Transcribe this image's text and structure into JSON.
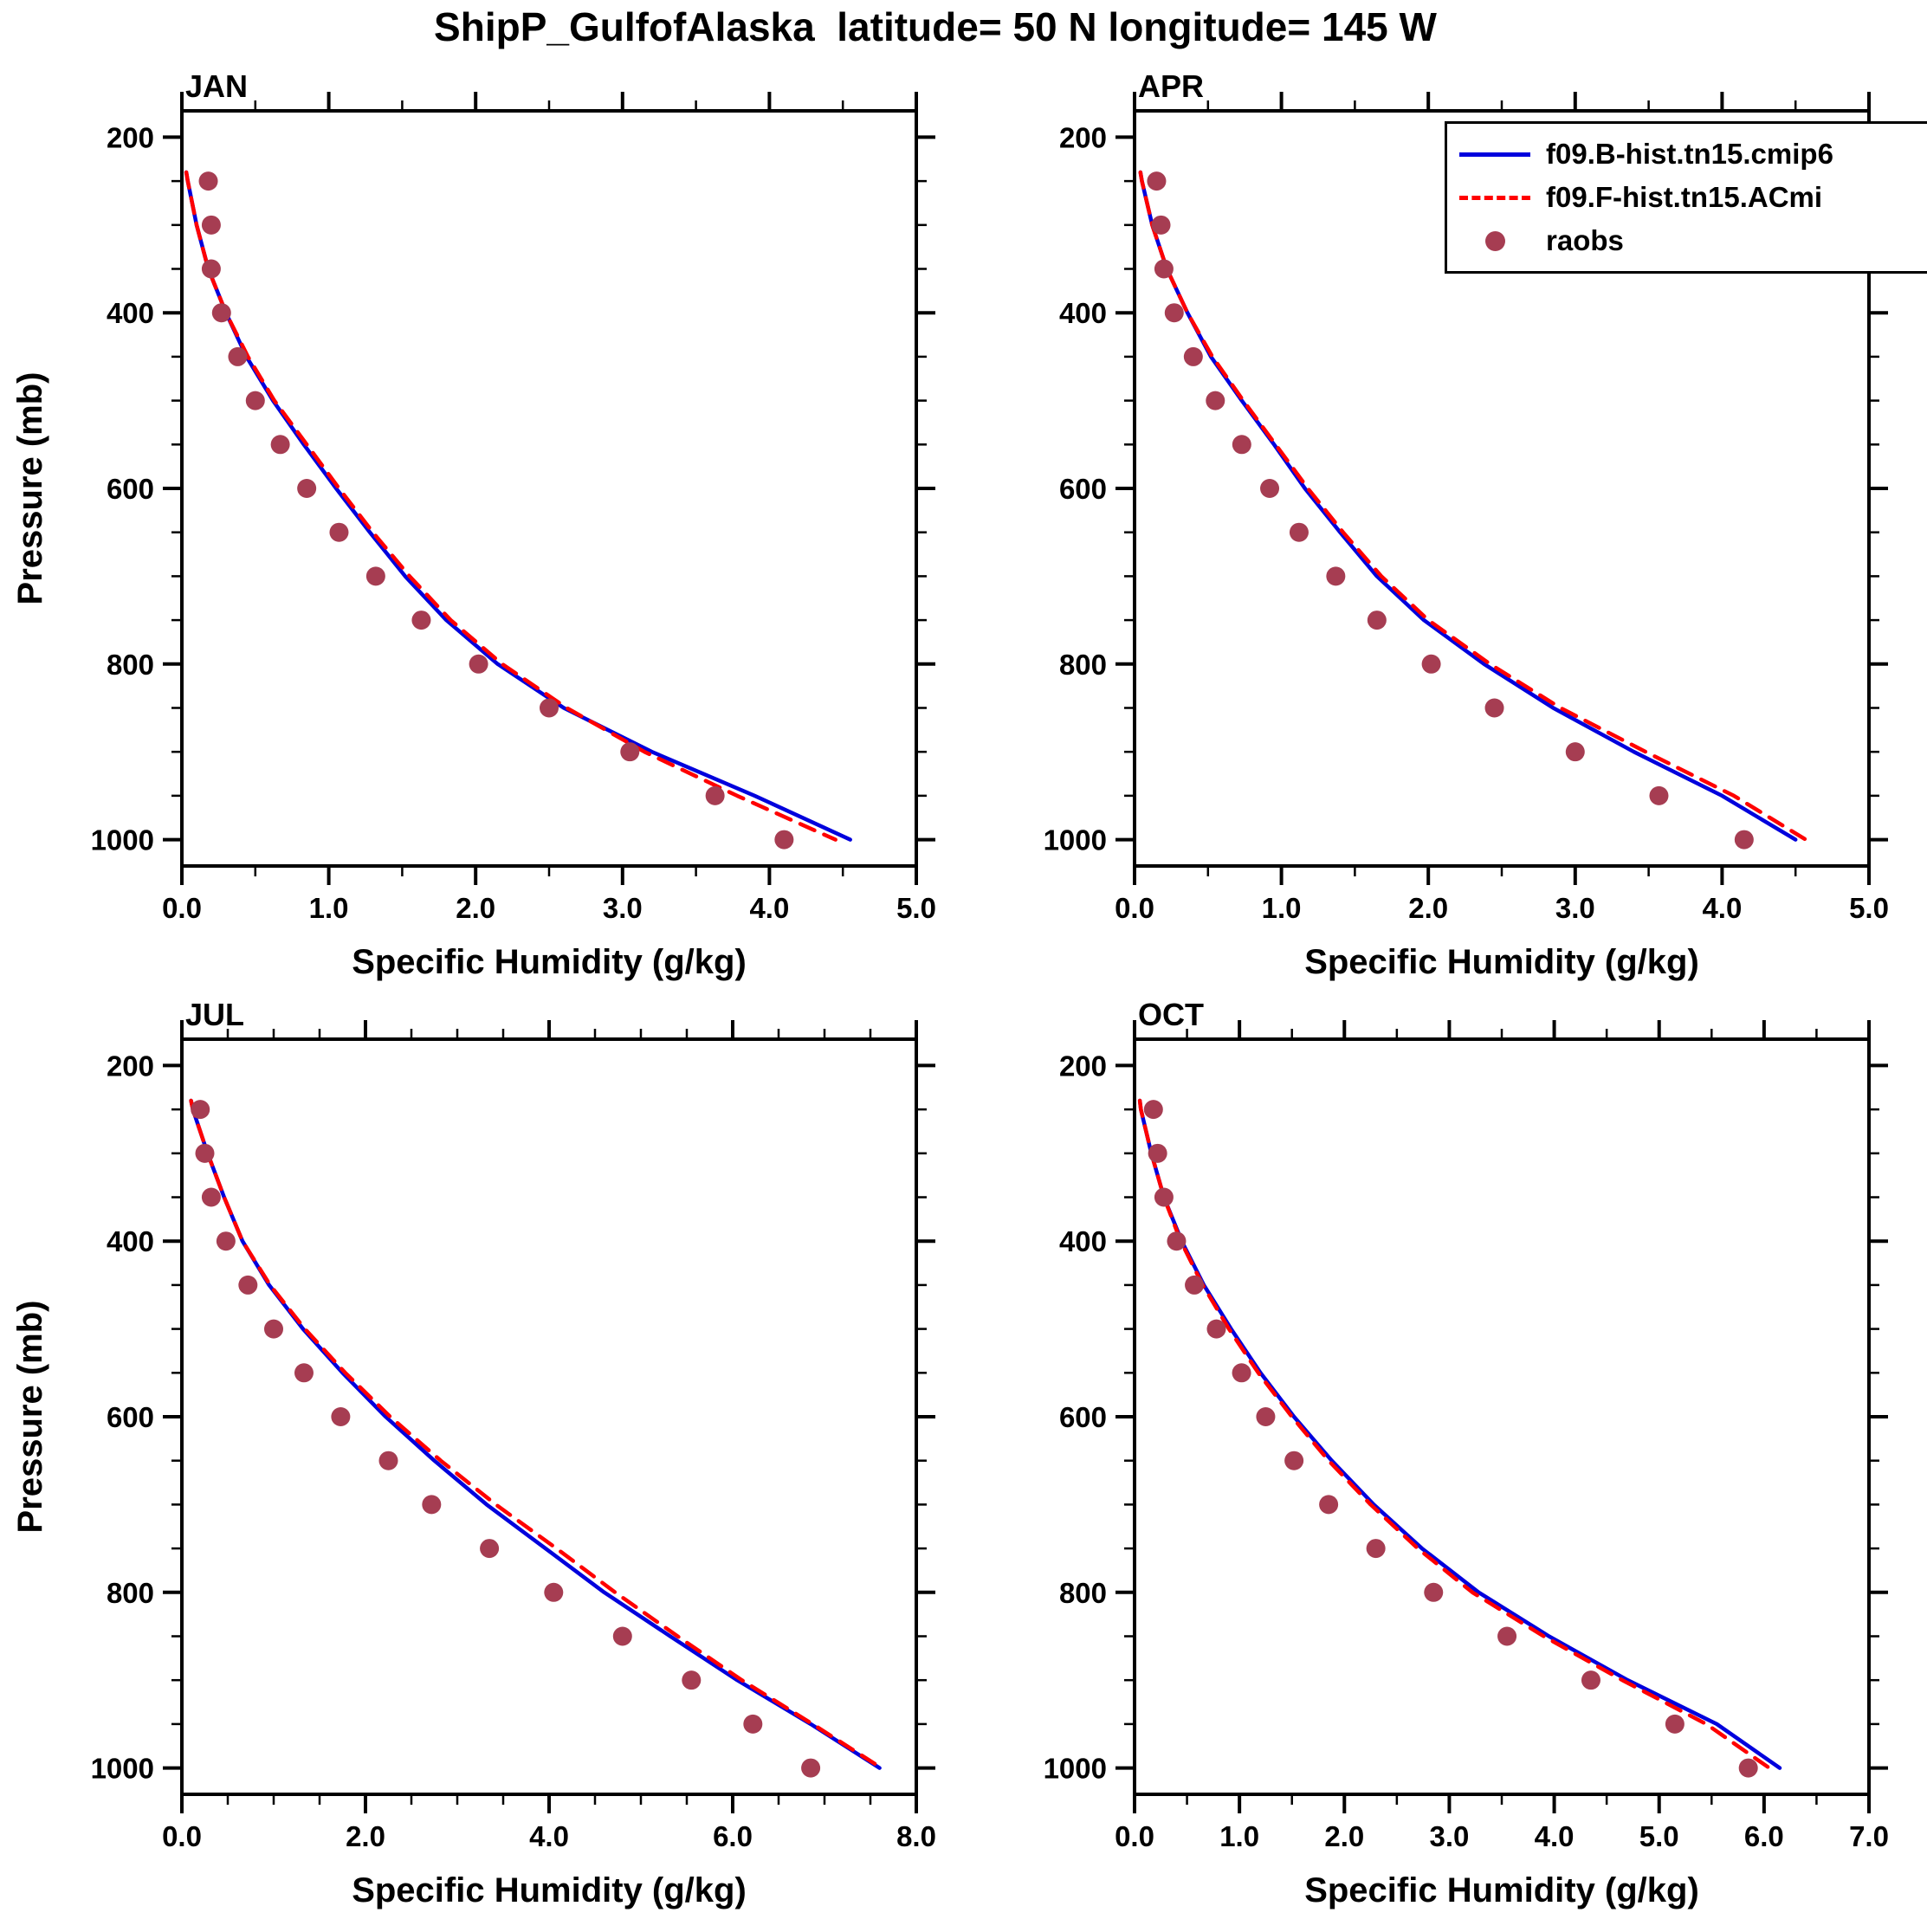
{
  "header": {
    "title": "ShipP_GulfofAlaska  latitude= 50 N longitude= 145 W"
  },
  "chart_data": {
    "type": "line",
    "title": "ShipP_GulfofAlaska  latitude= 50 N longitude= 145 W",
    "xlabel": "Specific Humidity (g/kg)",
    "ylabel": "Pressure (mb)",
    "grid": false,
    "legend_position": "top-right-overflow",
    "y_axis": {
      "tick_labels": [
        200,
        400,
        600,
        800,
        1000
      ],
      "min": 200,
      "max": 1000,
      "major_step": 200,
      "minor_step": 50,
      "domain_min": 170,
      "domain_max": 1030,
      "inverted": true
    },
    "pressures_model": [
      240,
      250,
      300,
      350,
      400,
      450,
      500,
      550,
      600,
      650,
      700,
      750,
      800,
      850,
      900,
      950,
      1000
    ],
    "pressures_obs": [
      250,
      300,
      350,
      400,
      450,
      500,
      550,
      600,
      650,
      700,
      750,
      800,
      850,
      900,
      950,
      1000
    ],
    "panels": [
      {
        "label": "JAN",
        "x_max": 5.0,
        "x_major_step": 1.0,
        "x_minor_step": 0.5,
        "x_tick_labels": [
          "0.0",
          "1.0",
          "2.0",
          "3.0",
          "4.0",
          "5.0"
        ],
        "series": {
          "model_b": [
            0.03,
            0.04,
            0.1,
            0.18,
            0.3,
            0.44,
            0.62,
            0.83,
            1.05,
            1.28,
            1.52,
            1.8,
            2.15,
            2.6,
            3.2,
            3.9,
            4.55
          ],
          "model_f": [
            0.03,
            0.04,
            0.1,
            0.18,
            0.3,
            0.45,
            0.63,
            0.85,
            1.07,
            1.3,
            1.55,
            1.83,
            2.18,
            2.62,
            3.15,
            3.78,
            4.45
          ],
          "raobs": [
            0.18,
            0.2,
            0.2,
            0.27,
            0.38,
            0.5,
            0.67,
            0.85,
            1.07,
            1.32,
            1.63,
            2.02,
            2.5,
            3.05,
            3.63,
            4.1
          ]
        }
      },
      {
        "label": "APR",
        "x_max": 5.0,
        "x_major_step": 1.0,
        "x_minor_step": 0.5,
        "x_tick_labels": [
          "0.0",
          "1.0",
          "2.0",
          "3.0",
          "4.0",
          "5.0"
        ],
        "series": {
          "model_b": [
            0.04,
            0.05,
            0.12,
            0.22,
            0.36,
            0.52,
            0.73,
            0.95,
            1.16,
            1.4,
            1.65,
            1.97,
            2.38,
            2.85,
            3.4,
            4.0,
            4.5
          ],
          "model_f": [
            0.04,
            0.05,
            0.12,
            0.22,
            0.36,
            0.53,
            0.74,
            0.96,
            1.18,
            1.42,
            1.68,
            2.0,
            2.42,
            2.9,
            3.48,
            4.08,
            4.57
          ],
          "raobs": [
            0.15,
            0.18,
            0.2,
            0.27,
            0.4,
            0.55,
            0.73,
            0.92,
            1.12,
            1.37,
            1.65,
            2.02,
            2.45,
            3.0,
            3.57,
            4.15
          ]
        }
      },
      {
        "label": "JUL",
        "x_max": 8.0,
        "x_major_step": 2.0,
        "x_minor_step": 0.5,
        "x_tick_labels": [
          "0.0",
          "2.0",
          "4.0",
          "6.0",
          "8.0"
        ],
        "series": {
          "model_b": [
            0.1,
            0.12,
            0.28,
            0.46,
            0.66,
            0.95,
            1.32,
            1.75,
            2.22,
            2.75,
            3.32,
            3.96,
            4.6,
            5.32,
            6.05,
            6.85,
            7.6
          ],
          "model_f": [
            0.1,
            0.12,
            0.28,
            0.46,
            0.66,
            0.96,
            1.34,
            1.78,
            2.27,
            2.82,
            3.42,
            4.08,
            4.72,
            5.4,
            6.1,
            6.87,
            7.62
          ],
          "raobs": [
            0.2,
            0.25,
            0.32,
            0.48,
            0.72,
            1.0,
            1.33,
            1.73,
            2.25,
            2.72,
            3.35,
            4.05,
            4.8,
            5.55,
            6.22,
            6.85
          ]
        }
      },
      {
        "label": "OCT",
        "x_max": 7.0,
        "x_major_step": 1.0,
        "x_minor_step": 0.5,
        "x_tick_labels": [
          "0.0",
          "1.0",
          "2.0",
          "3.0",
          "4.0",
          "5.0",
          "6.0",
          "7.0"
        ],
        "series": {
          "model_b": [
            0.05,
            0.06,
            0.16,
            0.28,
            0.45,
            0.66,
            0.92,
            1.2,
            1.52,
            1.88,
            2.28,
            2.74,
            3.28,
            3.95,
            4.7,
            5.55,
            6.15
          ],
          "model_f": [
            0.05,
            0.06,
            0.16,
            0.28,
            0.44,
            0.65,
            0.9,
            1.18,
            1.5,
            1.85,
            2.25,
            2.7,
            3.22,
            3.9,
            4.65,
            5.45,
            6.05
          ],
          "raobs": [
            0.18,
            0.22,
            0.28,
            0.4,
            0.57,
            0.78,
            1.02,
            1.25,
            1.52,
            1.85,
            2.3,
            2.85,
            3.55,
            4.35,
            5.15,
            5.85
          ]
        }
      }
    ],
    "legend": {
      "entries": [
        {
          "label": "f09.B-hist.tn15.cmip6",
          "style": "solid-line",
          "color": "#0000dd"
        },
        {
          "label": "f09.F-hist.tn15.ACmi",
          "style": "dashed-line",
          "color": "#ff0000"
        },
        {
          "label": "raobs",
          "style": "dot",
          "color": "#a63d52"
        }
      ]
    },
    "colors": {
      "model_b": "#0000dd",
      "model_f": "#ff0000",
      "raobs": "#a63d52",
      "axis": "#000000",
      "background": "#ffffff"
    }
  }
}
